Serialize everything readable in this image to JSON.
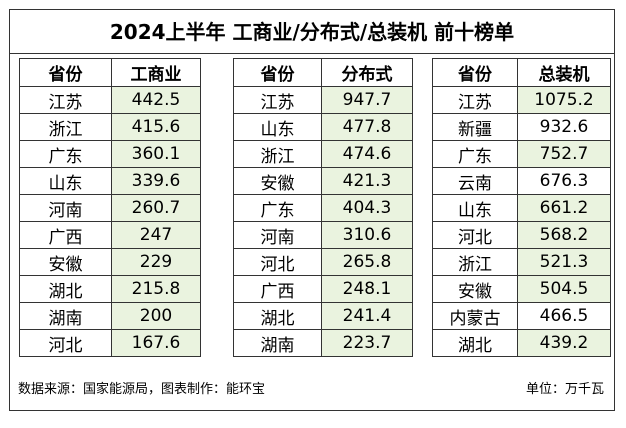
{
  "title": "2024上半年 工商业/分布式/总装机 前十榜单",
  "tables": [
    {
      "headers": [
        "省份",
        "工商业"
      ],
      "rows": [
        [
          "江苏",
          "442.5"
        ],
        [
          "浙江",
          "415.6"
        ],
        [
          "广东",
          "360.1"
        ],
        [
          "山东",
          "339.6"
        ],
        [
          "河南",
          "260.7"
        ],
        [
          "广西",
          "247"
        ],
        [
          "安徽",
          "229"
        ],
        [
          "湖北",
          "215.8"
        ],
        [
          "湖南",
          "200"
        ],
        [
          "河北",
          "167.6"
        ]
      ]
    },
    {
      "headers": [
        "省份",
        "分布式"
      ],
      "rows": [
        [
          "江苏",
          "947.7"
        ],
        [
          "山东",
          "477.8"
        ],
        [
          "浙江",
          "474.6"
        ],
        [
          "安徽",
          "421.3"
        ],
        [
          "广东",
          "404.3"
        ],
        [
          "河南",
          "310.6"
        ],
        [
          "河北",
          "265.8"
        ],
        [
          "广西",
          "248.1"
        ],
        [
          "湖北",
          "241.4"
        ],
        [
          "湖南",
          "223.7"
        ]
      ]
    },
    {
      "headers": [
        "省份",
        "总装机"
      ],
      "rows": [
        [
          "江苏",
          "1075.2"
        ],
        [
          "新疆",
          "932.6"
        ],
        [
          "广东",
          "752.7"
        ],
        [
          "云南",
          "676.3"
        ],
        [
          "山东",
          "661.2"
        ],
        [
          "河北",
          "568.2"
        ],
        [
          "浙江",
          "521.3"
        ],
        [
          "安徽",
          "504.5"
        ],
        [
          "内蒙古",
          "466.5"
        ],
        [
          "湖北",
          "439.2"
        ]
      ]
    }
  ],
  "footer": {
    "source": "数据来源：国家能源局，图表制作：能环宝",
    "unit": "单位：万千瓦"
  },
  "colors": {
    "highlight": "#eaf3df",
    "border": "#333333"
  }
}
